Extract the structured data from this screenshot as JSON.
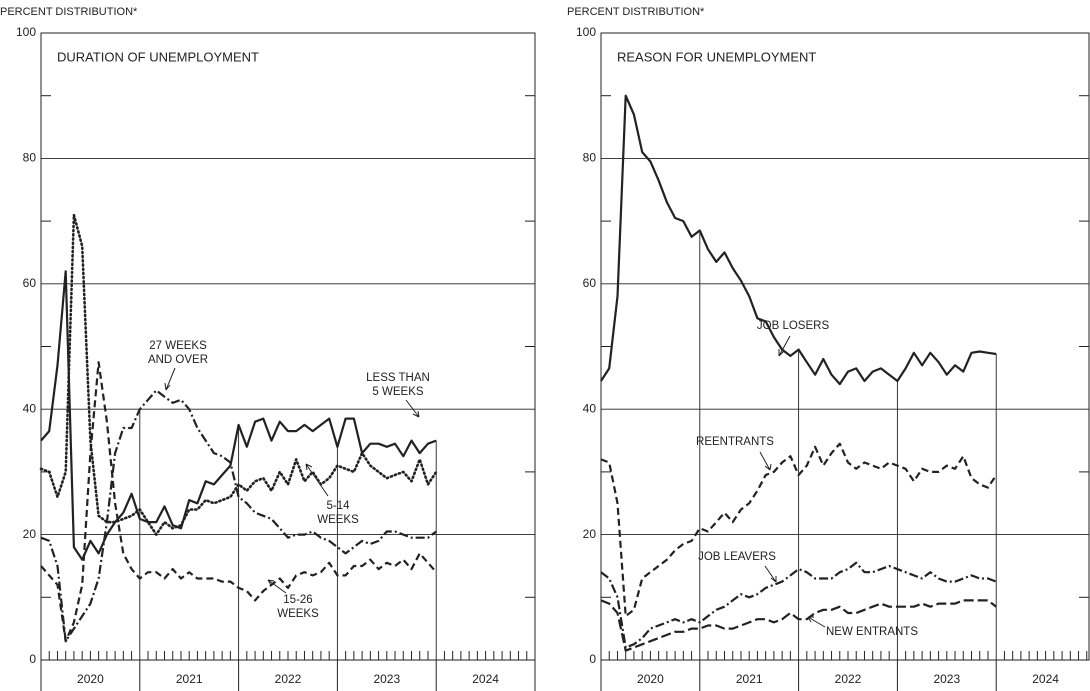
{
  "chart_data": [
    {
      "type": "line",
      "title": "DURATION OF UNEMPLOYMENT",
      "y_label": "PERCENT DISTRIBUTION*",
      "x": [
        2020,
        2020.083,
        2020.167,
        2020.25,
        2020.333,
        2020.417,
        2020.5,
        2020.583,
        2020.667,
        2020.75,
        2020.833,
        2020.917,
        2021,
        2021.083,
        2021.167,
        2021.25,
        2021.333,
        2021.417,
        2021.5,
        2021.583,
        2021.667,
        2021.75,
        2021.833,
        2021.917,
        2022,
        2022.083,
        2022.167,
        2022.25,
        2022.333,
        2022.417,
        2022.5,
        2022.583,
        2022.667,
        2022.75,
        2022.833,
        2022.917,
        2023,
        2023.083,
        2023.167,
        2023.25,
        2023.333,
        2023.417,
        2023.5,
        2023.583,
        2023.667,
        2023.75,
        2023.833,
        2023.917,
        2024
      ],
      "series": [
        {
          "name": "LESS THAN 5 WEEKS",
          "color": "#222222",
          "style": "solid",
          "values": [
            35,
            36.5,
            47,
            62,
            18,
            16,
            19,
            17,
            20,
            22,
            23.5,
            26.5,
            22.5,
            22,
            22,
            24.5,
            21.5,
            21,
            25.5,
            25,
            28.5,
            28,
            29.5,
            31,
            37.5,
            34,
            38,
            38.5,
            35,
            38,
            36.5,
            36.5,
            37.5,
            36.5,
            37.5,
            38.5,
            34,
            38.5,
            38.5,
            33,
            34.5,
            34.5,
            34,
            34.5,
            32.5,
            35,
            33,
            34.5,
            35
          ]
        },
        {
          "name": "5-14 WEEKS",
          "color": "#222222",
          "style": "dotted",
          "values": [
            30.5,
            30,
            26,
            30,
            71,
            66,
            35,
            23,
            22,
            22,
            22.5,
            23,
            24,
            22,
            20,
            22,
            21,
            21.5,
            24,
            24,
            25.5,
            25,
            25.5,
            26,
            28,
            27,
            28.5,
            29,
            27,
            30,
            28,
            32,
            28.5,
            30,
            28,
            29,
            31,
            30.5,
            30,
            33,
            31,
            30,
            29,
            29.5,
            30,
            28.5,
            32,
            28,
            30
          ]
        },
        {
          "name": "15-26 WEEKS",
          "color": "#222222",
          "style": "dashed",
          "values": [
            15,
            13.5,
            12,
            3,
            6,
            12,
            33,
            47.5,
            38,
            25,
            17,
            14.5,
            13,
            14,
            14,
            13,
            14.5,
            13,
            14,
            13,
            13,
            13,
            12.5,
            12.5,
            11.5,
            11,
            9.5,
            11,
            12,
            13,
            11.5,
            13.5,
            14,
            13.5,
            14,
            15.5,
            13.5,
            13.5,
            15,
            15,
            16,
            14.5,
            15.5,
            15,
            16,
            14.5,
            17,
            15.5,
            14
          ]
        },
        {
          "name": "27 WEEKS AND OVER",
          "color": "#222222",
          "style": "dashdot",
          "values": [
            19.5,
            19,
            15,
            3,
            5,
            7,
            9,
            13,
            22,
            33,
            37,
            37,
            40,
            41.5,
            43,
            42,
            41,
            41.5,
            40,
            37,
            35,
            33,
            32.5,
            31.5,
            26,
            25,
            23.5,
            23,
            22.5,
            21,
            19.5,
            20,
            20,
            20.5,
            19.5,
            19,
            18,
            17,
            18,
            19,
            18.5,
            19,
            20.5,
            20.5,
            20,
            19.5,
            19.5,
            19.5,
            20.5
          ]
        }
      ],
      "annotations": [
        [
          "27 WEEKS",
          "AND OVER"
        ],
        [
          "LESS THAN",
          "5 WEEKS"
        ],
        [
          "5-14",
          "WEEKS"
        ],
        [
          "15-26",
          "WEEKS"
        ]
      ],
      "xlim": [
        2020,
        2025
      ],
      "xticks": [
        {
          "value": 2020.5,
          "label": "2020"
        },
        {
          "value": 2021.5,
          "label": "2021"
        },
        {
          "value": 2022.5,
          "label": "2022"
        },
        {
          "value": 2023.5,
          "label": "2023"
        },
        {
          "value": 2024.5,
          "label": "2024"
        }
      ],
      "ylim": [
        0,
        100
      ],
      "yticks": [
        0,
        20,
        40,
        60,
        80,
        100
      ],
      "grid": true
    },
    {
      "type": "line",
      "title": "REASON FOR UNEMPLOYMENT",
      "y_label": "PERCENT DISTRIBUTION*",
      "x": [
        2020,
        2020.083,
        2020.167,
        2020.25,
        2020.333,
        2020.417,
        2020.5,
        2020.583,
        2020.667,
        2020.75,
        2020.833,
        2020.917,
        2021,
        2021.083,
        2021.167,
        2021.25,
        2021.333,
        2021.417,
        2021.5,
        2021.583,
        2021.667,
        2021.75,
        2021.833,
        2021.917,
        2022,
        2022.083,
        2022.167,
        2022.25,
        2022.333,
        2022.417,
        2022.5,
        2022.583,
        2022.667,
        2022.75,
        2022.833,
        2022.917,
        2023,
        2023.083,
        2023.167,
        2023.25,
        2023.333,
        2023.417,
        2023.5,
        2023.583,
        2023.667,
        2023.75,
        2023.833,
        2023.917,
        2024
      ],
      "series": [
        {
          "name": "JOB LOSERS",
          "color": "#222222",
          "style": "solid",
          "values": [
            44.5,
            46.5,
            58,
            90,
            87,
            81,
            79.5,
            76.5,
            73,
            70.5,
            70,
            67.5,
            68.5,
            65.5,
            63.5,
            65,
            62.5,
            60.5,
            58,
            54.5,
            54,
            51.5,
            49.5,
            48.5,
            49.5,
            47.5,
            45.5,
            48,
            45.5,
            44,
            46,
            46.5,
            44.5,
            46,
            46.5,
            45.5,
            44.5,
            46.5,
            49,
            47,
            49,
            47.5,
            45.5,
            47,
            46,
            49,
            49.2,
            49,
            48.8
          ]
        },
        {
          "name": "REENTRANTS",
          "color": "#222222",
          "style": "dashed",
          "values": [
            32,
            31.5,
            25,
            7,
            8,
            13,
            14,
            15,
            16,
            17.5,
            18.5,
            19,
            21,
            20.5,
            22,
            23.5,
            22,
            24,
            25,
            27,
            29.5,
            30,
            31.5,
            32.5,
            29.5,
            31,
            34,
            31,
            33,
            34.5,
            31.5,
            30.5,
            31.5,
            31,
            30.5,
            31.5,
            31,
            30.5,
            28.5,
            30.5,
            30,
            30,
            31,
            30.5,
            32.5,
            29,
            28,
            27.5,
            29.5
          ]
        },
        {
          "name": "JOB LEAVERS",
          "color": "#222222",
          "style": "dashdot",
          "values": [
            14,
            13,
            10,
            2,
            2.5,
            3.5,
            5,
            5.5,
            6,
            6.5,
            6,
            6.5,
            6,
            7,
            8,
            8.5,
            9.5,
            10.5,
            10,
            10.5,
            11.5,
            12,
            12.5,
            13.5,
            14.5,
            14,
            13,
            13,
            13,
            14,
            14.5,
            15.5,
            14,
            14,
            14.5,
            15,
            14.5,
            14,
            13.5,
            13,
            14,
            13,
            12.5,
            12.5,
            13,
            13.5,
            13,
            13,
            12.5
          ]
        },
        {
          "name": "NEW ENTRANTS",
          "color": "#222222",
          "style": "longdash",
          "values": [
            9.5,
            9,
            7.5,
            1.5,
            2,
            2.5,
            3,
            3.5,
            4,
            4.5,
            4.5,
            5,
            5,
            5.5,
            5.5,
            5,
            5,
            5.5,
            6,
            6.5,
            6.5,
            6,
            6.5,
            7.5,
            6.5,
            6.5,
            7.5,
            8,
            8,
            8.5,
            7.5,
            7.5,
            8,
            8.5,
            9,
            8.5,
            8.5,
            8.5,
            8.5,
            9,
            8.5,
            9,
            9,
            9,
            9.5,
            9.5,
            9.5,
            9.5,
            8.5
          ]
        }
      ],
      "annotations": [
        [
          "JOB LOSERS"
        ],
        [
          "REENTRANTS"
        ],
        [
          "JOB LEAVERS"
        ],
        [
          "NEW ENTRANTS"
        ]
      ],
      "xlim": [
        2020,
        2025
      ],
      "xticks": [
        {
          "value": 2020.5,
          "label": "2020"
        },
        {
          "value": 2021.5,
          "label": "2021"
        },
        {
          "value": 2022.5,
          "label": "2022"
        },
        {
          "value": 2023.5,
          "label": "2023"
        },
        {
          "value": 2024.5,
          "label": "2024"
        }
      ],
      "ylim": [
        0,
        100
      ],
      "yticks": [
        0,
        20,
        40,
        60,
        80,
        100
      ],
      "grid": true
    }
  ]
}
